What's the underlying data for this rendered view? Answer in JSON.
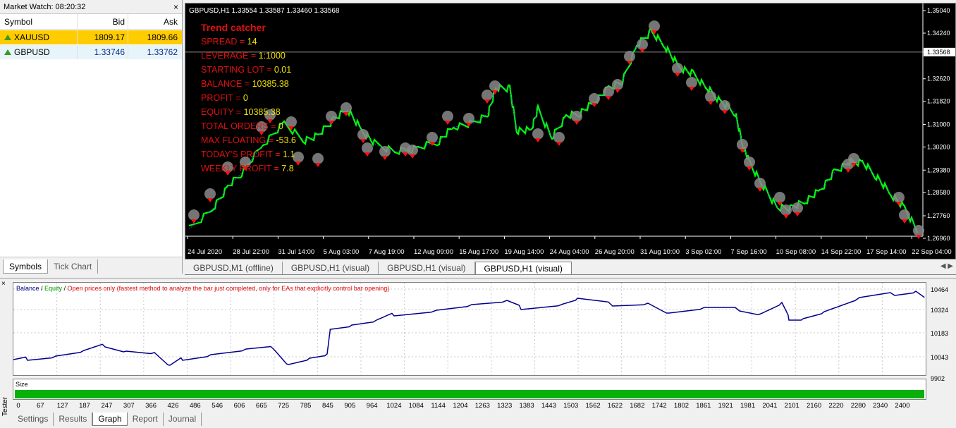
{
  "market_watch": {
    "title": "Market Watch: 08:20:32",
    "close": "×",
    "headers": {
      "symbol": "Symbol",
      "bid": "Bid",
      "ask": "Ask"
    },
    "rows": [
      {
        "symbol": "XAUUSD",
        "bid": "1809.17",
        "ask": "1809.66"
      },
      {
        "symbol": "GBPUSD",
        "bid": "1.33746",
        "ask": "1.33762"
      }
    ],
    "tabs": [
      "Symbols",
      "Tick Chart"
    ]
  },
  "chart": {
    "title": "GBPUSD,H1  1.33554 1.33587 1.33460 1.33568",
    "ea_name": "Trend catcher",
    "info": [
      {
        "k": "SPREAD = ",
        "v": "14"
      },
      {
        "k": "LEVERAGE = ",
        "v": "1:1000"
      },
      {
        "k": "STARTING LOT = ",
        "v": "0.01"
      },
      {
        "k": "BALANCE = ",
        "v": "10385.38"
      },
      {
        "k": "PROFIT = ",
        "v": "0"
      },
      {
        "k": "EQUITY = ",
        "v": "10385.38"
      },
      {
        "k": "TOTAL ORDERS = ",
        "v": "0"
      },
      {
        "k": "MAX FLOATING = ",
        "v": "-53.6"
      },
      {
        "k": "TODAY'S PROFIT = ",
        "v": "1.1"
      },
      {
        "k": "WEEKLY PROFIT = ",
        "v": "7.8"
      }
    ],
    "price_labels": [
      "1.35040",
      "1.34240",
      "1.33568",
      "1.32620",
      "1.31820",
      "1.31000",
      "1.30200",
      "1.29380",
      "1.28580",
      "1.27760",
      "1.26960"
    ],
    "current_price": "1.33568",
    "time_labels": [
      "24 Jul 2020",
      "28 Jul 22:00",
      "31 Jul 14:00",
      "5 Aug 03:00",
      "7 Aug 19:00",
      "12 Aug 09:00",
      "15 Aug 17:00",
      "19 Aug 14:00",
      "24 Aug 04:00",
      "26 Aug 20:00",
      "31 Aug 10:00",
      "3 Sep 02:00",
      "7 Sep 16:00",
      "10 Sep 08:00",
      "14 Sep 22:00",
      "17 Sep 14:00",
      "22 Sep 04:00"
    ],
    "tabs": [
      "GBPUSD,M1 (offline)",
      "GBPUSD,H1 (visual)",
      "GBPUSD,H1 (visual)",
      "GBPUSD,H1 (visual)"
    ],
    "active_tab": 3,
    "colors": {
      "candles": "#00ff00",
      "text_key": "#e01010",
      "text_value": "#f0e000"
    }
  },
  "tester": {
    "side_label": "Tester",
    "close": "×",
    "legend": {
      "balance": "Balance",
      "sep1": " / ",
      "equity": "Equity",
      "sep2": " / ",
      "mode": "Open prices only (fastest method to analyze the bar just completed, only for EAs that explicitly control bar opening)"
    },
    "y_labels": [
      "10464",
      "10324",
      "10183",
      "10043",
      "9902"
    ],
    "size_label": "Size",
    "x_labels": [
      "0",
      "67",
      "127",
      "187",
      "247",
      "307",
      "366",
      "426",
      "486",
      "546",
      "606",
      "665",
      "725",
      "785",
      "845",
      "905",
      "964",
      "1024",
      "1084",
      "1144",
      "1204",
      "1263",
      "1323",
      "1383",
      "1443",
      "1503",
      "1562",
      "1622",
      "1682",
      "1742",
      "1802",
      "1861",
      "1921",
      "1981",
      "2041",
      "2101",
      "2160",
      "2220",
      "2280",
      "2340",
      "2400"
    ],
    "tabs": [
      "Settings",
      "Results",
      "Graph",
      "Report",
      "Journal"
    ],
    "active_tab": 2,
    "colors": {
      "balance": "#00008b",
      "equity": "#00a000",
      "size": "#09b009"
    }
  }
}
